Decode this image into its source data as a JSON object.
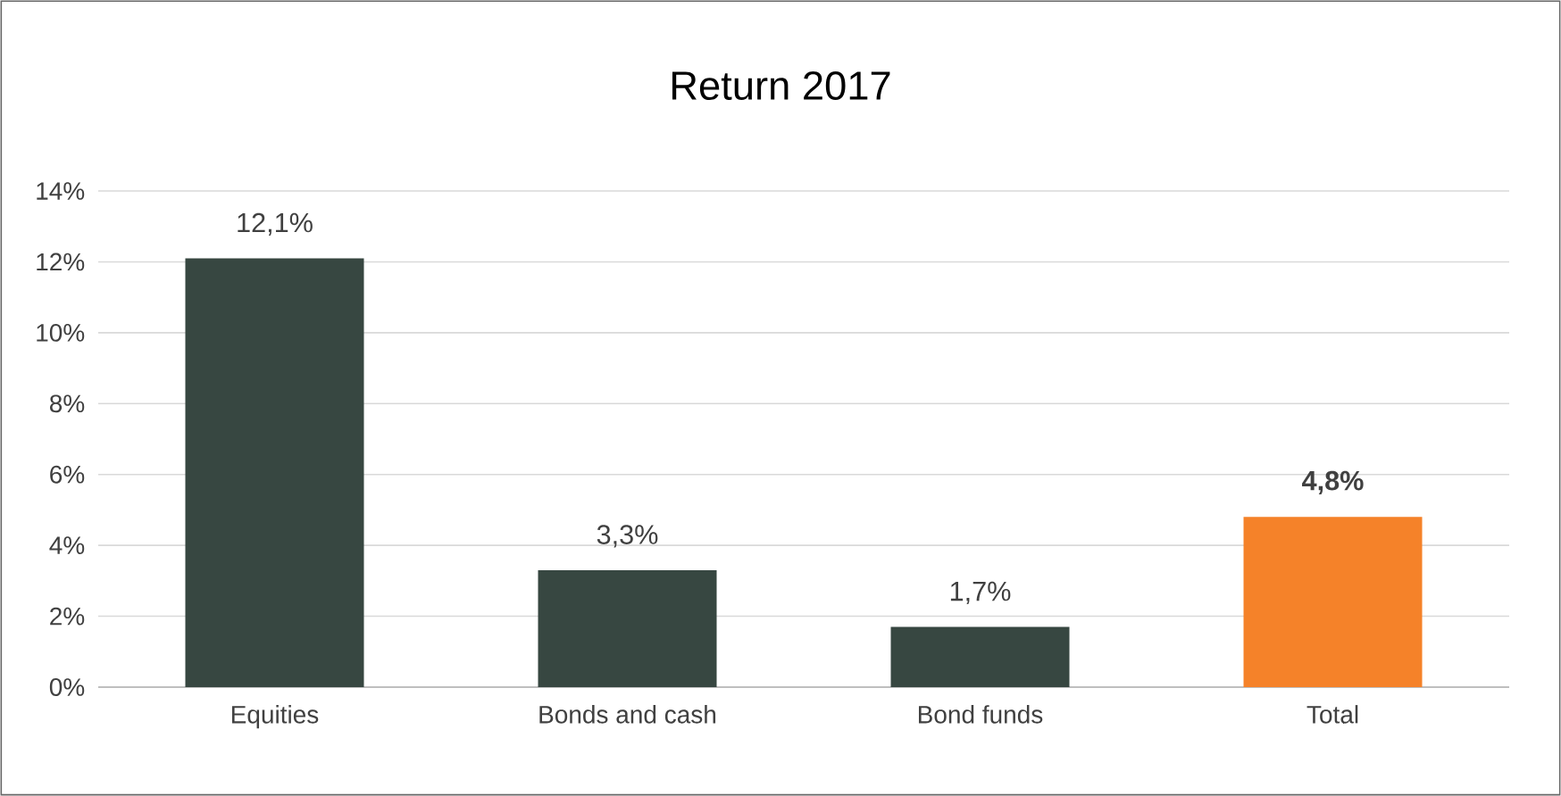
{
  "chart_data": {
    "type": "bar",
    "title": "Return 2017",
    "categories": [
      "Equities",
      "Bonds and cash",
      "Bond funds",
      "Total"
    ],
    "values": [
      12.1,
      3.3,
      1.7,
      4.8
    ],
    "colors": [
      "#374741",
      "#374741",
      "#374741",
      "#f58229"
    ],
    "value_labels": [
      "12,1%",
      "3,3%",
      "1,7%",
      "**4,8%**"
    ],
    "ylim": [
      0,
      14
    ],
    "yticks": [
      {
        "value": 0,
        "label": "0%"
      },
      {
        "value": 2,
        "label": "2%"
      },
      {
        "value": 4,
        "label": "4%"
      },
      {
        "value": 6,
        "label": "6%"
      },
      {
        "value": 8,
        "label": "8%"
      },
      {
        "value": 10,
        "label": "10%"
      },
      {
        "value": 12,
        "label": "12%"
      },
      {
        "value": 14,
        "label": "14%"
      }
    ],
    "grid": "y"
  }
}
